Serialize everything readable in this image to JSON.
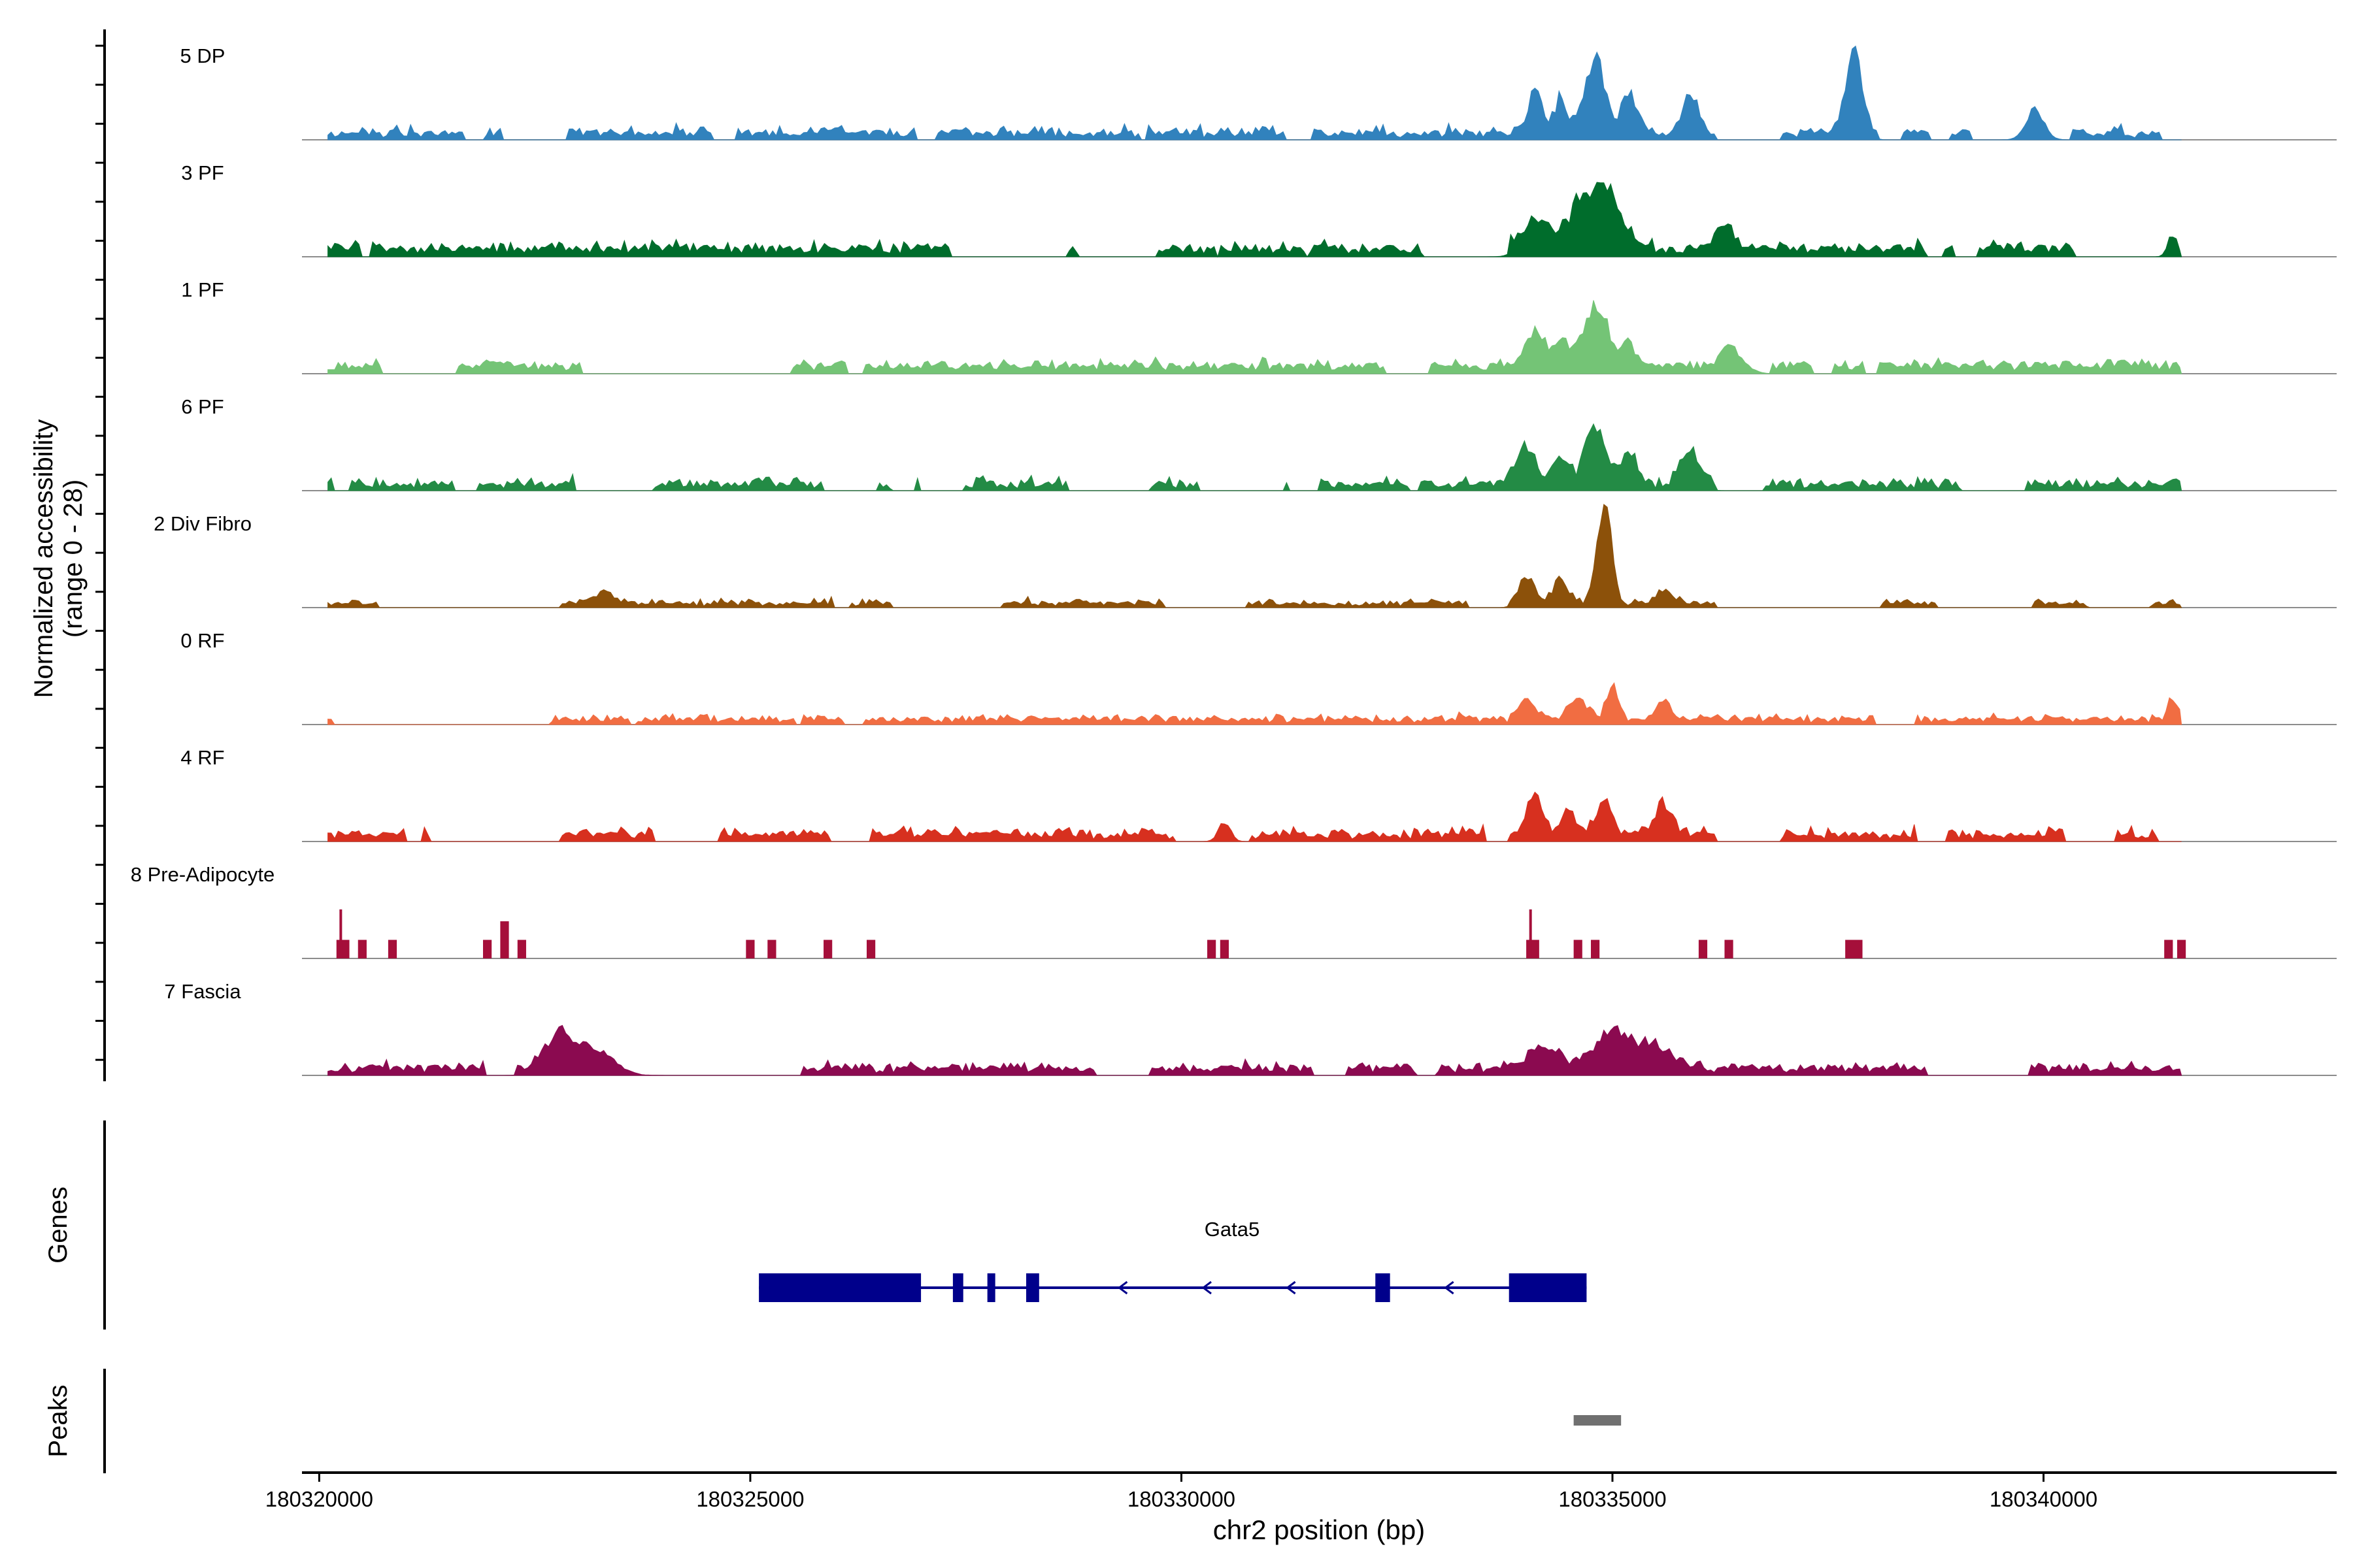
{
  "chart_data": {
    "type": "area",
    "title": "",
    "region": "chr2",
    "xlabel": "chr2 position (bp)",
    "ylabel_line1": "Normalized accessibility",
    "ylabel_line2": "(range 0 - 28)",
    "ylim": [
      0,
      28
    ],
    "xlim": [
      180319800,
      180343400
    ],
    "x_ticks": [
      180320000,
      180325000,
      180330000,
      180335000,
      180340000
    ],
    "x_tick_labels": [
      "180320000",
      "180325000",
      "180330000",
      "180335000",
      "180340000"
    ],
    "data_start": 180320100,
    "data_end": 180341600,
    "tracks": [
      {
        "name": "5 DP",
        "color": "#3182bd",
        "seed": 11,
        "base": 1.6,
        "noise": 3.0,
        "density": 0.55,
        "peaks": [
          [
            180334100,
            12,
            120
          ],
          [
            180334400,
            9,
            100
          ],
          [
            180334800,
            20,
            160
          ],
          [
            180335200,
            9,
            150
          ],
          [
            180335900,
            10,
            140
          ],
          [
            180337800,
            21,
            140
          ],
          [
            180339900,
            8,
            150
          ]
        ]
      },
      {
        "name": "3 PF",
        "color": "#006d2c",
        "seed": 23,
        "base": 2.2,
        "noise": 2.5,
        "density": 0.72,
        "peaks": [
          [
            180334100,
            8,
            200
          ],
          [
            180334700,
            14,
            300
          ],
          [
            180335000,
            10,
            200
          ],
          [
            180336300,
            6,
            150
          ],
          [
            180341500,
            6,
            80
          ]
        ]
      },
      {
        "name": "1 PF",
        "color": "#74c476",
        "seed": 37,
        "base": 2.2,
        "noise": 2.0,
        "density": 0.8,
        "peaks": [
          [
            180334100,
            10,
            150
          ],
          [
            180334400,
            7,
            130
          ],
          [
            180334800,
            16,
            200
          ],
          [
            180335200,
            6,
            120
          ],
          [
            180336400,
            5,
            200
          ]
        ]
      },
      {
        "name": "6 PF",
        "color": "#238b45",
        "seed": 41,
        "base": 1.6,
        "noise": 2.6,
        "density": 0.55,
        "peaks": [
          [
            180334000,
            11,
            150
          ],
          [
            180334400,
            8,
            120
          ],
          [
            180334800,
            17,
            160
          ],
          [
            180335200,
            9,
            140
          ],
          [
            180335900,
            10,
            150
          ]
        ]
      },
      {
        "name": "2 Div Fibro",
        "color": "#8c510a",
        "seed": 53,
        "base": 1.0,
        "noise": 2.0,
        "density": 0.5,
        "peaks": [
          [
            180334000,
            8,
            120
          ],
          [
            180334400,
            7,
            120
          ],
          [
            180334900,
            28,
            120
          ],
          [
            180335600,
            4,
            100
          ],
          [
            180323300,
            3,
            200
          ]
        ]
      },
      {
        "name": "0 RF",
        "color": "#f16d42",
        "seed": 67,
        "base": 1.4,
        "noise": 1.8,
        "density": 0.75,
        "peaks": [
          [
            180334000,
            5,
            150
          ],
          [
            180334600,
            6,
            150
          ],
          [
            180335000,
            9,
            100
          ],
          [
            180335600,
            5,
            120
          ],
          [
            180341500,
            6,
            80
          ]
        ]
      },
      {
        "name": "4 RF",
        "color": "#d7301f",
        "seed": 79,
        "base": 1.8,
        "noise": 2.6,
        "density": 0.7,
        "peaks": [
          [
            180334100,
            11,
            130
          ],
          [
            180334500,
            7,
            120
          ],
          [
            180334900,
            9,
            130
          ],
          [
            180335600,
            9,
            140
          ],
          [
            180330500,
            5,
            100
          ]
        ]
      },
      {
        "name": "8 Pre-Adipocyte",
        "color": "#a50f3a",
        "seed": 83,
        "base": 0,
        "noise": 0,
        "density": 0,
        "blocks": [
          [
            180320200,
            180320350,
            7
          ],
          [
            180320450,
            180320550,
            7
          ],
          [
            180320800,
            180320900,
            7
          ],
          [
            180321900,
            180322000,
            7
          ],
          [
            180322100,
            180322200,
            14
          ],
          [
            180322300,
            180322400,
            7
          ],
          [
            180324950,
            180325050,
            7
          ],
          [
            180325200,
            180325300,
            7
          ],
          [
            180325850,
            180325950,
            7
          ],
          [
            180326350,
            180326450,
            7
          ],
          [
            180330300,
            180330400,
            7
          ],
          [
            180330450,
            180330550,
            7
          ],
          [
            180334000,
            180334150,
            7
          ],
          [
            180334550,
            180334650,
            7
          ],
          [
            180334750,
            180334850,
            7
          ],
          [
            180336000,
            180336100,
            7
          ],
          [
            180336300,
            180336400,
            7
          ],
          [
            180337700,
            180337900,
            7
          ],
          [
            180341400,
            180341500,
            7
          ],
          [
            180341550,
            180341650,
            7
          ]
        ],
        "spikes": [
          [
            180320250,
            14
          ],
          [
            180334050,
            14
          ]
        ]
      },
      {
        "name": "7 Fascia",
        "color": "#8b0a50",
        "seed": 97,
        "base": 1.8,
        "noise": 2.4,
        "density": 0.7,
        "peaks": [
          [
            180322800,
            9,
            250
          ],
          [
            180323200,
            7,
            300
          ],
          [
            180334200,
            6,
            250
          ],
          [
            180335000,
            10,
            300
          ],
          [
            180335500,
            6,
            300
          ]
        ]
      }
    ],
    "genes_label": "Genes",
    "gene": {
      "name": "Gata5",
      "color": "#00008b",
      "strand": "-",
      "start": 180325100,
      "end": 180334700,
      "exons": [
        [
          180325100,
          180326980
        ],
        [
          180327350,
          180327470
        ],
        [
          180327750,
          180327830
        ],
        [
          180328200,
          180328350
        ],
        [
          180332250,
          180332420
        ],
        [
          180333800,
          180334700
        ]
      ]
    },
    "peaks_label": "Peaks",
    "peak_regions": [
      [
        180334550,
        180335100
      ]
    ],
    "peak_color": "#707070"
  }
}
